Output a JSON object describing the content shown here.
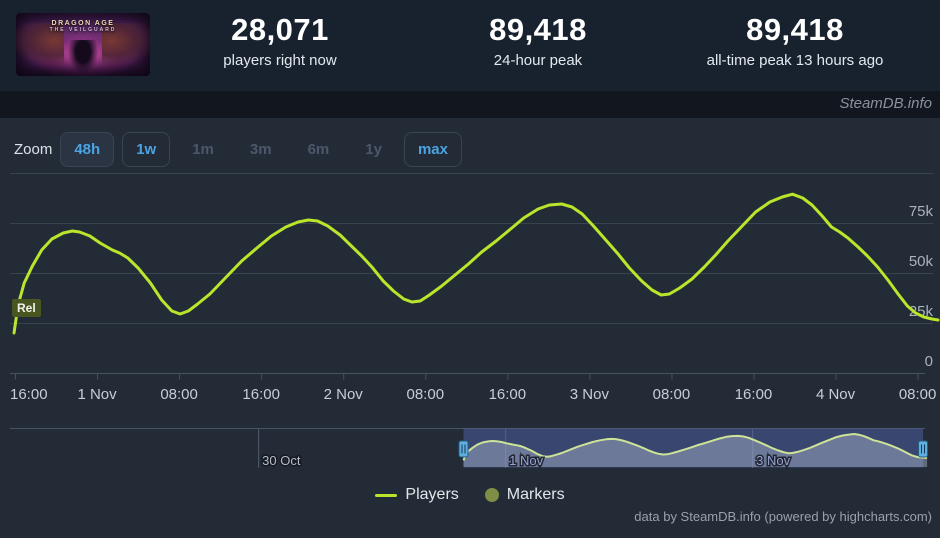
{
  "header": {
    "capsule_line1": "DRAGON AGE",
    "capsule_line2": "THE VEILGUARD",
    "stats": [
      {
        "value": "28,071",
        "label": "players right now"
      },
      {
        "value": "89,418",
        "label": "24-hour peak"
      },
      {
        "value": "89,418",
        "label": "all-time peak 13 hours ago"
      }
    ]
  },
  "watermark": "SteamDB.info",
  "toolbar": {
    "zoom_label": "Zoom",
    "buttons": [
      {
        "label": "48h",
        "state": "active"
      },
      {
        "label": "1w",
        "state": "enabled"
      },
      {
        "label": "1m",
        "state": "disabled"
      },
      {
        "label": "3m",
        "state": "disabled"
      },
      {
        "label": "6m",
        "state": "disabled"
      },
      {
        "label": "1y",
        "state": "disabled"
      },
      {
        "label": "max",
        "state": "enabled"
      }
    ]
  },
  "footer_credit": "data by SteamDB.info (powered by highcharts.com)",
  "colors": {
    "players_line": "#b9e52b",
    "markers_dot": "#7e8e44",
    "navigator_line": "#cde398",
    "navigator_mask": "rgba(88,108,188,0.42)",
    "navigator_area": "rgba(173,183,201,0.45)",
    "handle_fill": "#5fb0e1",
    "accent_blue": "#4aa3e3",
    "grid_line": "#39424f",
    "axis_line": "#49525f",
    "x_label": "#c7ced6",
    "y_label": "#aab2bb",
    "rel_bg": "#49561f"
  },
  "chart_data": {
    "type": "line",
    "title": "",
    "x_axis": {
      "start": "31 Oct 16:00",
      "hours_per_tick": 8,
      "tick_labels": [
        "16:00",
        "1 Nov",
        "08:00",
        "16:00",
        "2 Nov",
        "08:00",
        "16:00",
        "3 Nov",
        "08:00",
        "16:00",
        "4 Nov",
        "08:00"
      ]
    },
    "y_axis": {
      "unit": "players",
      "max": 100000,
      "ticks": [
        {
          "v": 0,
          "label": "0"
        },
        {
          "v": 25000,
          "label": "25k"
        },
        {
          "v": 50000,
          "label": "50k"
        },
        {
          "v": 75000,
          "label": "75k"
        },
        {
          "v": 100000,
          "label": ""
        }
      ]
    },
    "series": [
      {
        "name": "Players",
        "color": "#b9e52b",
        "points_hours_players": [
          [
            -0.1,
            20000
          ],
          [
            0.3,
            34000
          ],
          [
            0.9,
            45000
          ],
          [
            1.7,
            53500
          ],
          [
            2.6,
            61500
          ],
          [
            3.6,
            67000
          ],
          [
            4.7,
            70000
          ],
          [
            5.6,
            71000
          ],
          [
            6.3,
            70500
          ],
          [
            7.3,
            68500
          ],
          [
            8.3,
            65000
          ],
          [
            9.5,
            61500
          ],
          [
            10.2,
            60000
          ],
          [
            11,
            57500
          ],
          [
            12,
            52500
          ],
          [
            13.2,
            45000
          ],
          [
            14.3,
            36500
          ],
          [
            15.3,
            31000
          ],
          [
            16.1,
            29500
          ],
          [
            16.9,
            31000
          ],
          [
            17.8,
            34500
          ],
          [
            19,
            39500
          ],
          [
            20.5,
            47500
          ],
          [
            22.1,
            56000
          ],
          [
            23.7,
            63000
          ],
          [
            25,
            68500
          ],
          [
            26.4,
            73000
          ],
          [
            27.6,
            75500
          ],
          [
            28.6,
            76500
          ],
          [
            29.5,
            76000
          ],
          [
            30.5,
            73500
          ],
          [
            31.7,
            69000
          ],
          [
            32.8,
            63500
          ],
          [
            33.8,
            58500
          ],
          [
            34.8,
            53000
          ],
          [
            35.9,
            46000
          ],
          [
            36.9,
            41000
          ],
          [
            37.9,
            37000
          ],
          [
            38.7,
            35500
          ],
          [
            39.5,
            36000
          ],
          [
            40.4,
            39000
          ],
          [
            41.6,
            43500
          ],
          [
            42.9,
            49000
          ],
          [
            44.2,
            54500
          ],
          [
            45.5,
            60500
          ],
          [
            46.9,
            66000
          ],
          [
            48.2,
            71500
          ],
          [
            49.6,
            77500
          ],
          [
            51,
            82000
          ],
          [
            52.1,
            84000
          ],
          [
            53.3,
            84500
          ],
          [
            54.3,
            83000
          ],
          [
            55.3,
            79500
          ],
          [
            56.4,
            73500
          ],
          [
            57.6,
            66500
          ],
          [
            58.8,
            59500
          ],
          [
            59.9,
            52500
          ],
          [
            61.1,
            46000
          ],
          [
            62.1,
            41500
          ],
          [
            63,
            39000
          ],
          [
            63.8,
            39500
          ],
          [
            64.8,
            42500
          ],
          [
            66,
            47000
          ],
          [
            67.2,
            53000
          ],
          [
            68.3,
            59000
          ],
          [
            69.5,
            66000
          ],
          [
            70.9,
            73500
          ],
          [
            72.2,
            80500
          ],
          [
            73.6,
            85500
          ],
          [
            74.8,
            88000
          ],
          [
            75.8,
            89418
          ],
          [
            76.8,
            87500
          ],
          [
            77.7,
            84000
          ],
          [
            78.7,
            78500
          ],
          [
            79.6,
            73000
          ],
          [
            80.4,
            70500
          ],
          [
            81.2,
            67500
          ],
          [
            82.2,
            63000
          ],
          [
            83.1,
            58500
          ],
          [
            84.1,
            53000
          ],
          [
            85.1,
            46500
          ],
          [
            86.1,
            39500
          ],
          [
            87,
            33500
          ],
          [
            87.8,
            30000
          ],
          [
            88.6,
            28000
          ],
          [
            89.4,
            27000
          ],
          [
            90,
            26500
          ]
        ]
      }
    ],
    "release_marker": {
      "label": "Rel",
      "hour": 0
    },
    "legend": [
      {
        "label": "Players",
        "swatch": "line",
        "color": "#b9e52b"
      },
      {
        "label": "Markers",
        "swatch": "circle",
        "color": "#7e8e44"
      }
    ],
    "navigator": {
      "selection_hours": [
        0,
        89.2
      ],
      "axis_labels": [
        {
          "label": "30 Oct",
          "hour": -40
        },
        {
          "label": "1 Nov",
          "hour": 8
        },
        {
          "label": "3 Nov",
          "hour": 56
        }
      ]
    }
  }
}
